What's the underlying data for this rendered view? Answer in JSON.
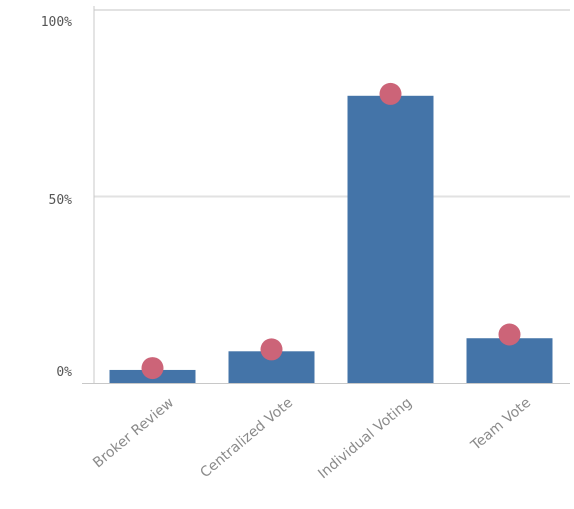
{
  "chart_data": {
    "type": "bar",
    "categories": [
      "Broker Review",
      "Centralized Vote",
      "Individual Voting",
      "Team Vote"
    ],
    "series": [
      {
        "type": "bar",
        "values": [
          3.5,
          8.5,
          77,
          12
        ]
      },
      {
        "type": "scatter",
        "values": [
          4,
          9,
          77.5,
          13
        ]
      }
    ],
    "yticks": [
      {
        "value": 0,
        "label": "0%"
      },
      {
        "value": 50,
        "label": "50%"
      },
      {
        "value": 100,
        "label": "100%"
      }
    ],
    "ylim": [
      0,
      100
    ],
    "grid": true,
    "colors": {
      "bar": "#4474a8",
      "marker": "#cc6478",
      "grid": "#e2e2e2",
      "axis": "#c8c8c8"
    }
  }
}
